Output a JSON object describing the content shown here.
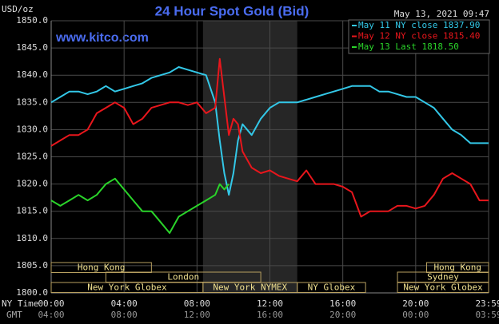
{
  "chart_data": {
    "type": "line",
    "title": "24 Hour Spot Gold (Bid)",
    "subtitle": "www.kitco.com",
    "timestamp": "May 13, 2021 09:47",
    "ylabel": "USD/oz",
    "xlabel": "NY Time",
    "x2label": "GMT",
    "x": [
      0,
      0.5,
      1,
      1.5,
      2,
      2.5,
      3,
      3.5,
      4,
      4.5,
      5,
      5.5,
      6,
      6.5,
      7,
      7.5,
      8,
      8.5,
      9,
      9.25,
      9.5,
      9.75,
      10,
      10.25,
      10.5,
      11,
      11.5,
      12,
      12.5,
      13,
      13.5,
      14,
      14.5,
      15,
      15.5,
      16,
      16.5,
      17,
      17.5,
      18,
      18.5,
      19,
      19.5,
      20,
      20.5,
      21,
      21.5,
      22,
      22.5,
      23,
      23.5,
      24
    ],
    "series": [
      {
        "name": "May 11 NY close 1837.90",
        "color": "#33c8e8",
        "values": [
          1835,
          1836,
          1837,
          1837,
          1836.5,
          1837,
          1838,
          1837,
          1837.5,
          1838,
          1838.5,
          1839.5,
          1840,
          1840.5,
          1841.5,
          1841,
          1840.5,
          1840,
          1835,
          1828,
          1822,
          1818,
          1822,
          1828,
          1831,
          1829,
          1832,
          1834,
          1835,
          1835,
          1835,
          1835.5,
          1836,
          1836.5,
          1837,
          1837.5,
          1838,
          1838,
          1838,
          1837,
          1837,
          1836.5,
          1836,
          1836,
          1835,
          1834,
          1832,
          1830,
          1829,
          1827.5,
          1827.5,
          1827.5
        ]
      },
      {
        "name": "May 12 NY close 1815.40",
        "color": "#e8161c",
        "values": [
          1827,
          1828,
          1829,
          1829,
          1830,
          1833,
          1834,
          1835,
          1834,
          1831,
          1832,
          1834,
          1834.5,
          1835,
          1835,
          1834.5,
          1835,
          1833,
          1834,
          1843,
          1836,
          1829,
          1832,
          1831,
          1826,
          1823,
          1822,
          1822.5,
          1821.5,
          1821,
          1820.5,
          1822.5,
          1820,
          1820,
          1820,
          1819.5,
          1818.5,
          1814,
          1815,
          1815,
          1815,
          1816,
          1816,
          1815.5,
          1816,
          1818,
          1821,
          1822,
          1821,
          1820,
          1817,
          1817
        ]
      },
      {
        "name": "May 13 Last 1818.50",
        "color": "#2ad42a",
        "values": [
          1817,
          1816,
          1817,
          1818,
          1817,
          1818,
          1820,
          1821,
          1819,
          1817,
          1815,
          1815,
          1813,
          1811,
          1814,
          1815,
          1816,
          1817,
          1818,
          1820,
          1819,
          1820,
          null,
          null,
          null,
          null,
          null,
          null,
          null,
          null,
          null,
          null,
          null,
          null,
          null,
          null,
          null,
          null,
          null,
          null,
          null,
          null,
          null,
          null,
          null,
          null,
          null,
          null,
          null,
          null,
          null,
          null
        ]
      }
    ],
    "xlim": [
      0,
      24
    ],
    "ylim": [
      1800,
      1850
    ],
    "xticks": [
      {
        "value": 0,
        "label": "00:00"
      },
      {
        "value": 4,
        "label": "04:00"
      },
      {
        "value": 8,
        "label": "08:00"
      },
      {
        "value": 12,
        "label": "12:00"
      },
      {
        "value": 16,
        "label": "16:00"
      },
      {
        "value": 20,
        "label": "20:00"
      },
      {
        "value": 24,
        "label": "23:59"
      }
    ],
    "x2ticks": [
      {
        "value": 0,
        "label": "04:00"
      },
      {
        "value": 4,
        "label": "08:00"
      },
      {
        "value": 8,
        "label": "12:00"
      },
      {
        "value": 12,
        "label": "16:00"
      },
      {
        "value": 16,
        "label": "20:00"
      },
      {
        "value": 20,
        "label": "00:00"
      },
      {
        "value": 24,
        "label": "03:59"
      }
    ],
    "yticks": [
      {
        "value": 1800,
        "label": "1800.0"
      },
      {
        "value": 1805,
        "label": "1805.0"
      },
      {
        "value": 1810,
        "label": "1810.0"
      },
      {
        "value": 1815,
        "label": "1815.0"
      },
      {
        "value": 1820,
        "label": "1820.0"
      },
      {
        "value": 1825,
        "label": "1825.0"
      },
      {
        "value": 1830,
        "label": "1830.0"
      },
      {
        "value": 1835,
        "label": "1835.0"
      },
      {
        "value": 1840,
        "label": "1840.0"
      },
      {
        "value": 1845,
        "label": "1845.0"
      },
      {
        "value": 1850,
        "label": "1850.0"
      }
    ],
    "grid": true,
    "highlight_span": [
      8.33,
      13.5
    ],
    "sessions": [
      [
        {
          "label": "Hong Kong",
          "start": 0,
          "end": 5.5
        },
        {
          "label": "Hong Kong",
          "start": 20.6,
          "end": 24
        }
      ],
      [
        {
          "label": "London",
          "start": 3,
          "end": 11.5
        },
        {
          "label": "Sydney",
          "start": 19,
          "end": 24
        }
      ],
      [
        {
          "label": "New York Globex",
          "start": 0,
          "end": 8.33
        },
        {
          "label": "New York NYMEX",
          "start": 8.33,
          "end": 13.5
        },
        {
          "label": "NY Globex",
          "start": 13.5,
          "end": 17.25
        },
        {
          "label": "New York Globex",
          "start": 19,
          "end": 24
        }
      ]
    ]
  }
}
